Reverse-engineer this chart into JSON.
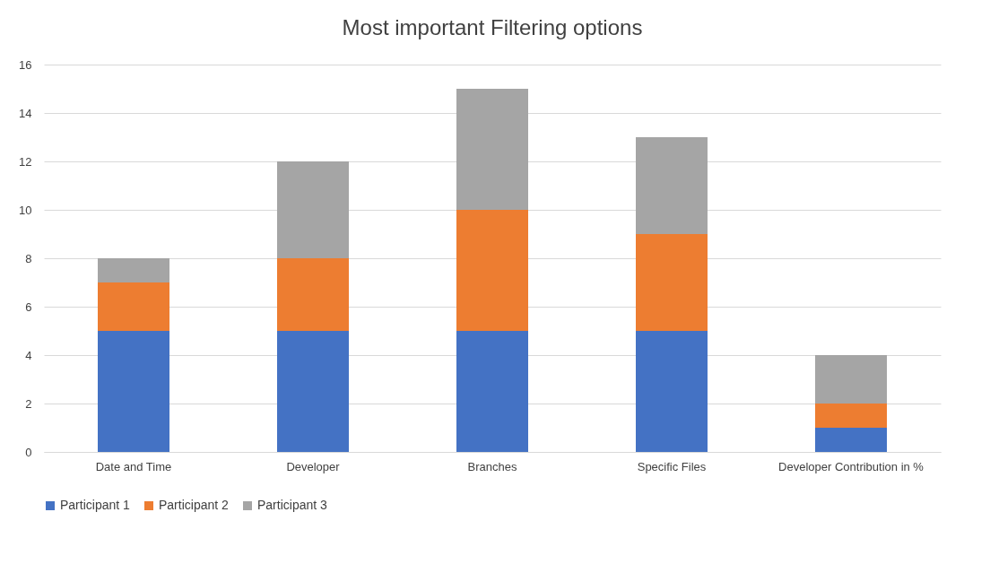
{
  "chart_data": {
    "type": "bar",
    "title": "Most important Filtering options",
    "stacked": true,
    "categories": [
      "Date and Time",
      "Developer",
      "Branches",
      "Specific Files",
      "Developer Contribution in %"
    ],
    "series": [
      {
        "name": "Participant 1",
        "color": "#4472c4",
        "values": [
          5,
          5,
          5,
          5,
          1
        ]
      },
      {
        "name": "Participant 2",
        "color": "#ed7d31",
        "values": [
          2,
          3,
          5,
          4,
          1
        ]
      },
      {
        "name": "Participant 3",
        "color": "#a5a5a5",
        "values": [
          1,
          4,
          5,
          4,
          2
        ]
      }
    ],
    "ylim": [
      0,
      16
    ],
    "yticks": [
      0,
      2,
      4,
      6,
      8,
      10,
      12,
      14,
      16
    ],
    "grid": true,
    "legend": "bottom"
  }
}
